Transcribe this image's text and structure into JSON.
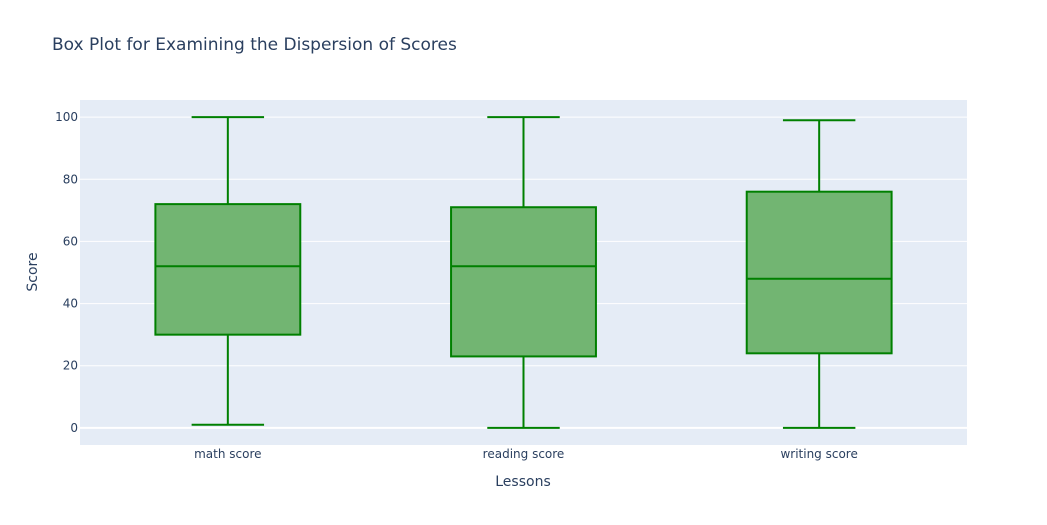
{
  "chart_data": {
    "type": "box",
    "title": "Box Plot for Examining the Dispersion of Scores",
    "xlabel": "Lessons",
    "ylabel": "Score",
    "ylim": [
      -5.5,
      105.5
    ],
    "yticks": [
      0,
      20,
      40,
      60,
      80,
      100
    ],
    "grid": true,
    "colors": {
      "plot_bg": "#e5ecf6",
      "grid": "#ffffff",
      "box_line": "#008000",
      "box_fill": "#72b572",
      "text": "#2a3f5f"
    },
    "categories": [
      "math score",
      "reading score",
      "writing score"
    ],
    "boxes": [
      {
        "name": "math score",
        "min": 1,
        "q1": 30,
        "median": 52,
        "q3": 72,
        "max": 100
      },
      {
        "name": "reading score",
        "min": 0,
        "q1": 23,
        "median": 52,
        "q3": 71,
        "max": 100
      },
      {
        "name": "writing score",
        "min": 0,
        "q1": 24,
        "median": 48,
        "q3": 76,
        "max": 99
      }
    ]
  }
}
